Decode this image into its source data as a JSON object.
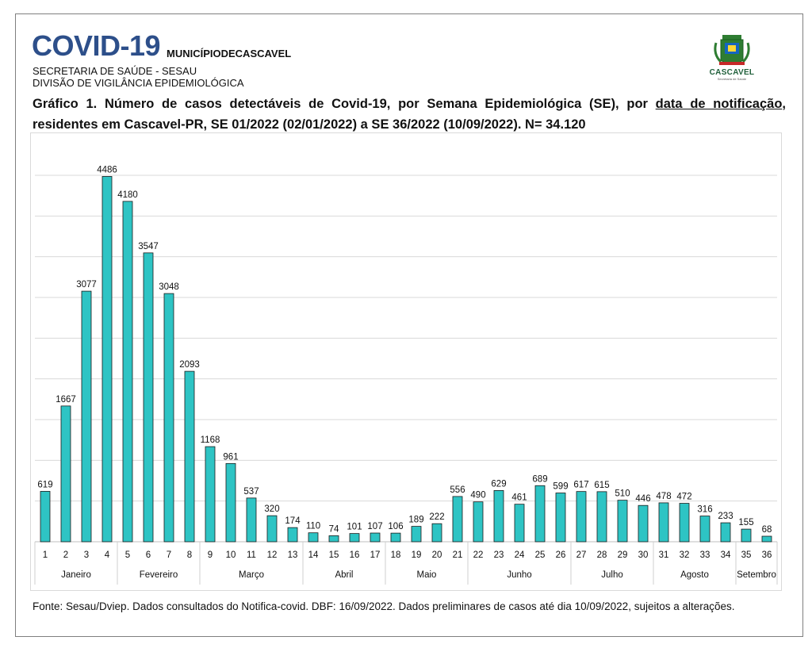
{
  "header": {
    "title": "COVID-19",
    "municipality": "MUNICÍPIODECASCAVEL",
    "secretaria": "SECRETARIA DE SAÚDE - SESAU",
    "divisao": "DIVISÃO DE VIGILÂNCIA EPIDEMIOLÓGICA"
  },
  "logo": {
    "text": "CASCAVEL",
    "icon": "city-coat-of-arms-icon",
    "tagline": "Secretaria de Saúde"
  },
  "caption": {
    "part1": "Gráfico 1. Número de casos detectáveis de Covid-19, por Semana Epidemiológica (SE), por ",
    "underlined": "data de notificação",
    "part2": ", residentes em Cascavel-PR, SE 01/2022 (02/01/2022) a SE 36/2022 (10/09/2022). N= 34.120"
  },
  "source": "Fonte: Sesau/Dviep. Dados consultados do Notifica-covid. DBF: 16/09/2022. Dados preliminares de casos até dia 10/09/2022, sujeitos a alterações.",
  "chart_data": {
    "type": "bar",
    "categories": [
      "1",
      "2",
      "3",
      "4",
      "5",
      "6",
      "7",
      "8",
      "9",
      "10",
      "11",
      "12",
      "13",
      "14",
      "15",
      "16",
      "17",
      "18",
      "19",
      "20",
      "21",
      "22",
      "23",
      "24",
      "25",
      "26",
      "27",
      "28",
      "29",
      "30",
      "31",
      "32",
      "33",
      "34",
      "35",
      "36"
    ],
    "values": [
      619,
      1667,
      3077,
      4486,
      4180,
      3547,
      3048,
      2093,
      1168,
      961,
      537,
      320,
      174,
      110,
      74,
      101,
      107,
      106,
      189,
      222,
      556,
      490,
      629,
      461,
      689,
      599,
      617,
      615,
      510,
      446,
      478,
      472,
      316,
      233,
      155,
      68
    ],
    "value_labels": [
      "619",
      "1667",
      "3077",
      "4486",
      "4180",
      "3547",
      "3048",
      "2093",
      "1168",
      "961",
      "537",
      "320",
      "174",
      "110",
      "74",
      "101",
      "107",
      "106",
      "189",
      "222",
      "556",
      "490",
      "629",
      "461",
      "689",
      "599",
      "617",
      "615",
      "510",
      "446",
      "478",
      "472",
      "316",
      "233",
      "155",
      "68"
    ],
    "groups": [
      {
        "label": "Janeiro",
        "start": 0,
        "end": 3
      },
      {
        "label": "Fevereiro",
        "start": 4,
        "end": 7
      },
      {
        "label": "Março",
        "start": 8,
        "end": 12
      },
      {
        "label": "Abril",
        "start": 13,
        "end": 16
      },
      {
        "label": "Maio",
        "start": 17,
        "end": 20
      },
      {
        "label": "Junho",
        "start": 21,
        "end": 25
      },
      {
        "label": "Julho",
        "start": 26,
        "end": 29
      },
      {
        "label": "Agosto",
        "start": 30,
        "end": 33
      },
      {
        "label": "Setembro",
        "start": 34,
        "end": 35
      }
    ],
    "ylim": [
      0,
      4500
    ],
    "grid": true,
    "grid_step": 500,
    "bar_color": "#2ec4c4",
    "bar_edge_color": "#1a1a1a"
  }
}
